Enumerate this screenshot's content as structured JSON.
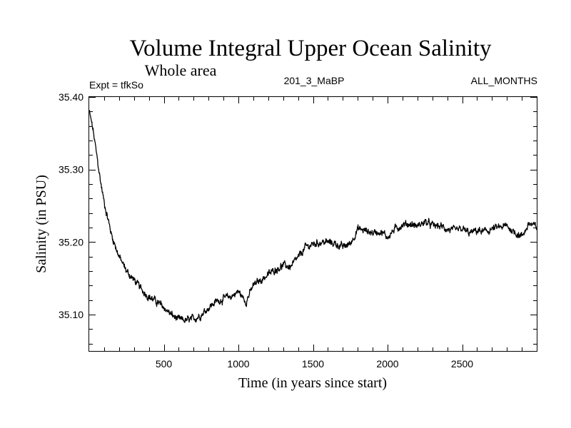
{
  "chart_data": {
    "type": "line",
    "title": "Volume Integral Upper Ocean Salinity",
    "subtitle": "Whole area",
    "annotations": {
      "left": "Expt = tfkSo",
      "center": "201_3_MaBP",
      "right": "ALL_MONTHS"
    },
    "xlabel": "Time (in years since start)",
    "ylabel": "Salinity (in PSU)",
    "xlim": [
      0,
      3000
    ],
    "ylim": [
      35.05,
      35.4
    ],
    "x_ticks": [
      500,
      1000,
      1500,
      2000,
      2500
    ],
    "x_tick_labels": [
      "500",
      "1000",
      "1500",
      "2000",
      "2500"
    ],
    "y_ticks": [
      35.1,
      35.2,
      35.3,
      35.4
    ],
    "y_tick_labels": [
      "35.10",
      "35.20",
      "35.30",
      "35.40"
    ],
    "grid": false,
    "series": [
      {
        "name": "Salinity",
        "color": "#000000",
        "x": [
          0,
          25,
          50,
          75,
          100,
          150,
          200,
          250,
          300,
          350,
          400,
          450,
          500,
          550,
          600,
          650,
          700,
          750,
          800,
          850,
          900,
          950,
          1000,
          1050,
          1100,
          1150,
          1200,
          1250,
          1300,
          1350,
          1400,
          1450,
          1500,
          1550,
          1600,
          1650,
          1700,
          1750,
          1800,
          1850,
          1900,
          1950,
          2000,
          2050,
          2100,
          2150,
          2200,
          2250,
          2300,
          2350,
          2400,
          2450,
          2500,
          2550,
          2600,
          2650,
          2700,
          2750,
          2800,
          2850,
          2900,
          2950,
          3000
        ],
        "values": [
          35.38,
          35.355,
          35.32,
          35.285,
          35.255,
          35.21,
          35.18,
          35.16,
          35.148,
          35.135,
          35.125,
          35.118,
          35.11,
          35.1,
          35.093,
          35.092,
          35.094,
          35.1,
          35.11,
          35.118,
          35.122,
          35.125,
          35.132,
          35.118,
          35.14,
          35.148,
          35.155,
          35.163,
          35.168,
          35.166,
          35.178,
          35.193,
          35.197,
          35.2,
          35.2,
          35.198,
          35.193,
          35.198,
          35.218,
          35.216,
          35.213,
          35.215,
          35.207,
          35.218,
          35.224,
          35.225,
          35.222,
          35.228,
          35.223,
          35.222,
          35.218,
          35.215,
          35.218,
          35.212,
          35.216,
          35.214,
          35.218,
          35.22,
          35.222,
          35.214,
          35.208,
          35.226,
          35.22
        ]
      }
    ]
  }
}
